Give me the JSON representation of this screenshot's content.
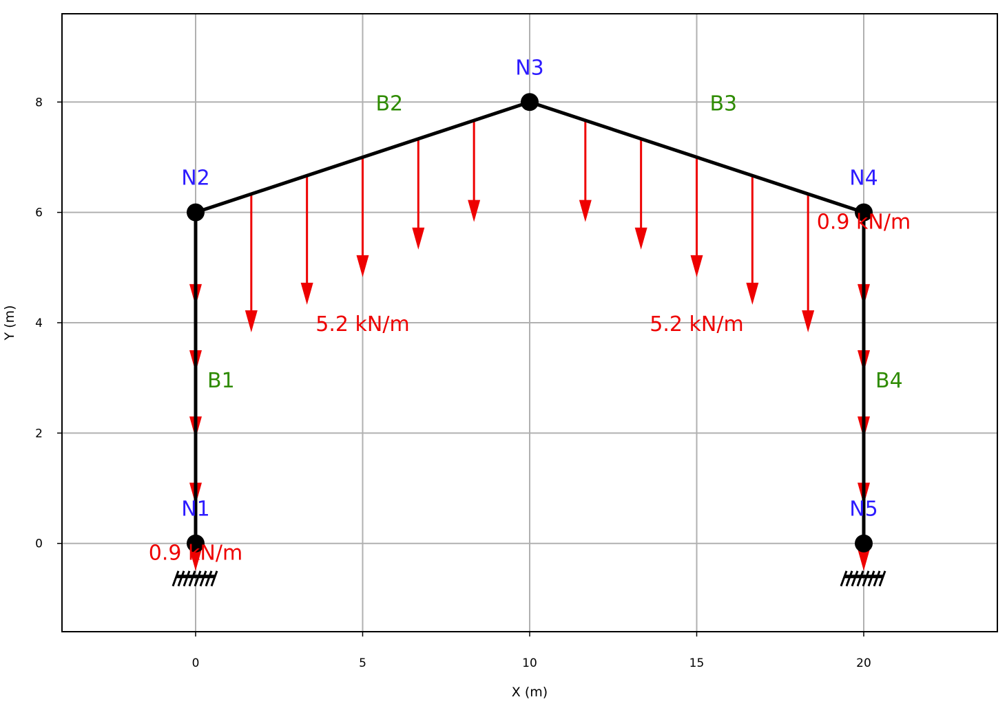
{
  "colors": {
    "node_label": "#2d1bff",
    "member_label": "#2e8b00",
    "load": "#ee0000",
    "frame": "#000000",
    "grid": "#b0b0b0"
  },
  "chart_data": {
    "type": "diagram",
    "xlabel": "X (m)",
    "ylabel": "Y (m)",
    "xlim": [
      -4,
      24
    ],
    "ylim": [
      -1.6,
      9.6
    ],
    "xticks": [
      0,
      5,
      10,
      15,
      20
    ],
    "yticks": [
      0,
      2,
      4,
      6,
      8
    ],
    "grid": true,
    "nodes": [
      {
        "id": "N1",
        "x": 0,
        "y": 0,
        "support": "fixed"
      },
      {
        "id": "N2",
        "x": 0,
        "y": 6
      },
      {
        "id": "N3",
        "x": 10,
        "y": 8
      },
      {
        "id": "N4",
        "x": 20,
        "y": 6
      },
      {
        "id": "N5",
        "x": 20,
        "y": 0,
        "support": "fixed"
      }
    ],
    "members": [
      {
        "id": "B1",
        "from": "N1",
        "to": "N2"
      },
      {
        "id": "B2",
        "from": "N2",
        "to": "N3"
      },
      {
        "id": "B3",
        "from": "N3",
        "to": "N4"
      },
      {
        "id": "B4",
        "from": "N4",
        "to": "N5"
      }
    ],
    "loads": [
      {
        "member": "B1",
        "label": "0.9 kN/m",
        "value": 0.9,
        "unit": "kN/m",
        "direction": "down"
      },
      {
        "member": "B2",
        "label": "5.2 kN/m",
        "value": 5.2,
        "unit": "kN/m",
        "direction": "down"
      },
      {
        "member": "B3",
        "label": "5.2 kN/m",
        "value": 5.2,
        "unit": "kN/m",
        "direction": "down"
      },
      {
        "member": "B4",
        "label": "0.9 kN/m",
        "value": 0.9,
        "unit": "kN/m",
        "direction": "down"
      }
    ]
  }
}
